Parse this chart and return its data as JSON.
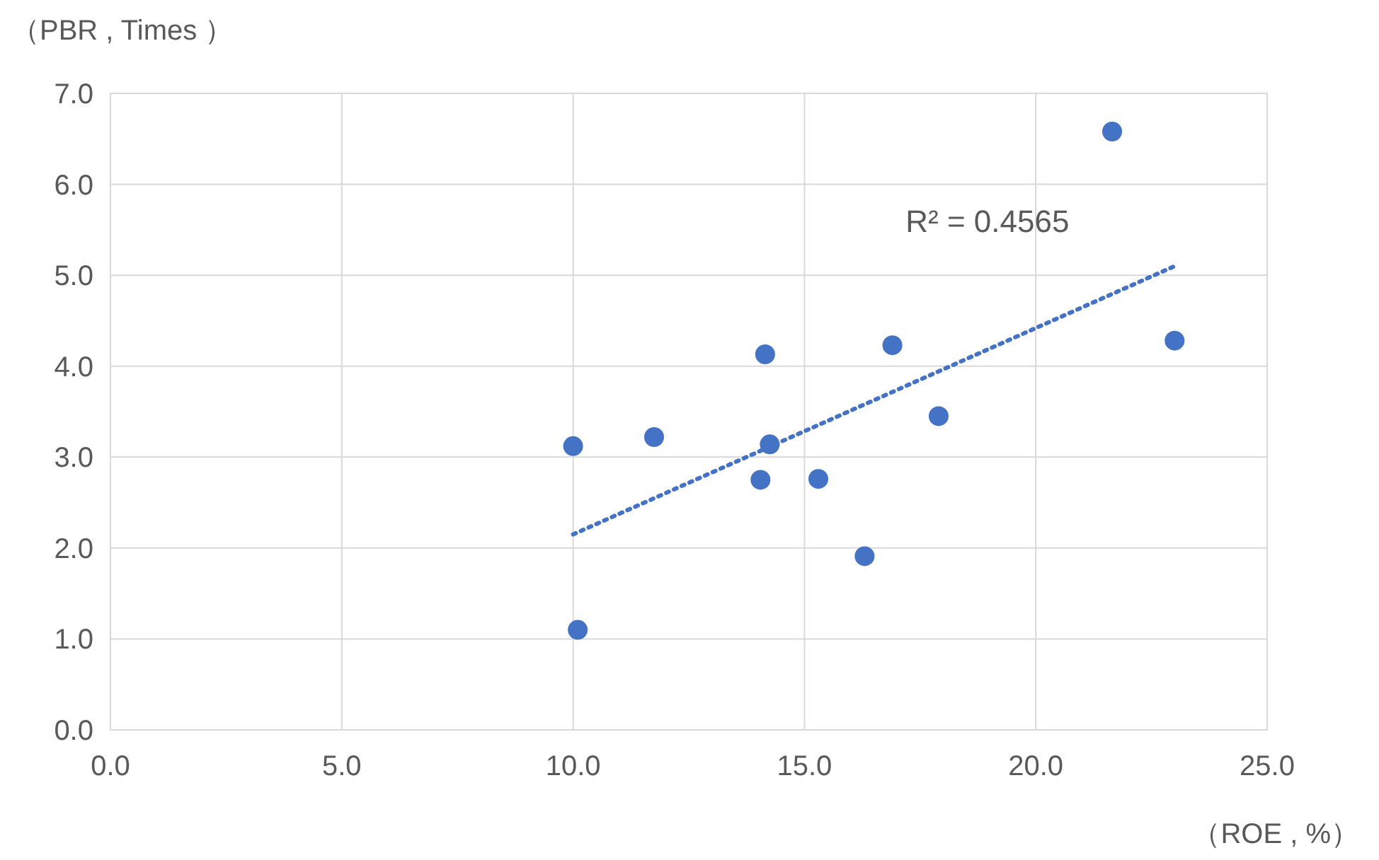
{
  "chart_data": {
    "type": "scatter",
    "xlabel": "（ROE , %）",
    "ylabel": "（PBR , Times ）",
    "xlim": [
      0,
      25
    ],
    "ylim": [
      0,
      7
    ],
    "xticks": [
      {
        "value": 0,
        "label": "0.0"
      },
      {
        "value": 5,
        "label": "5.0"
      },
      {
        "value": 10,
        "label": "10.0"
      },
      {
        "value": 15,
        "label": "15.0"
      },
      {
        "value": 20,
        "label": "20.0"
      },
      {
        "value": 25,
        "label": "25.0"
      }
    ],
    "yticks": [
      {
        "value": 0,
        "label": "0.0"
      },
      {
        "value": 1,
        "label": "1.0"
      },
      {
        "value": 2,
        "label": "2.0"
      },
      {
        "value": 3,
        "label": "3.0"
      },
      {
        "value": 4,
        "label": "4.0"
      },
      {
        "value": 5,
        "label": "5.0"
      },
      {
        "value": 6,
        "label": "6.0"
      },
      {
        "value": 7,
        "label": "7.0"
      }
    ],
    "grid": true,
    "series": [
      {
        "marker": "circle",
        "color": "#4472c4",
        "x": [
          10.0,
          10.1,
          11.75,
          14.15,
          14.25,
          14.05,
          15.3,
          16.3,
          16.9,
          17.9,
          21.65,
          23.0
        ],
        "values": [
          3.12,
          1.1,
          3.22,
          4.13,
          3.14,
          2.75,
          2.76,
          1.91,
          4.23,
          3.45,
          6.58,
          4.28
        ]
      },
      {
        "type": "line",
        "color": "#4472c4",
        "line_style": "dotted",
        "x": [
          10.0,
          23.0
        ],
        "values": [
          2.15,
          5.1
        ]
      }
    ],
    "annotations": [
      "R² = 0.4565"
    ]
  }
}
